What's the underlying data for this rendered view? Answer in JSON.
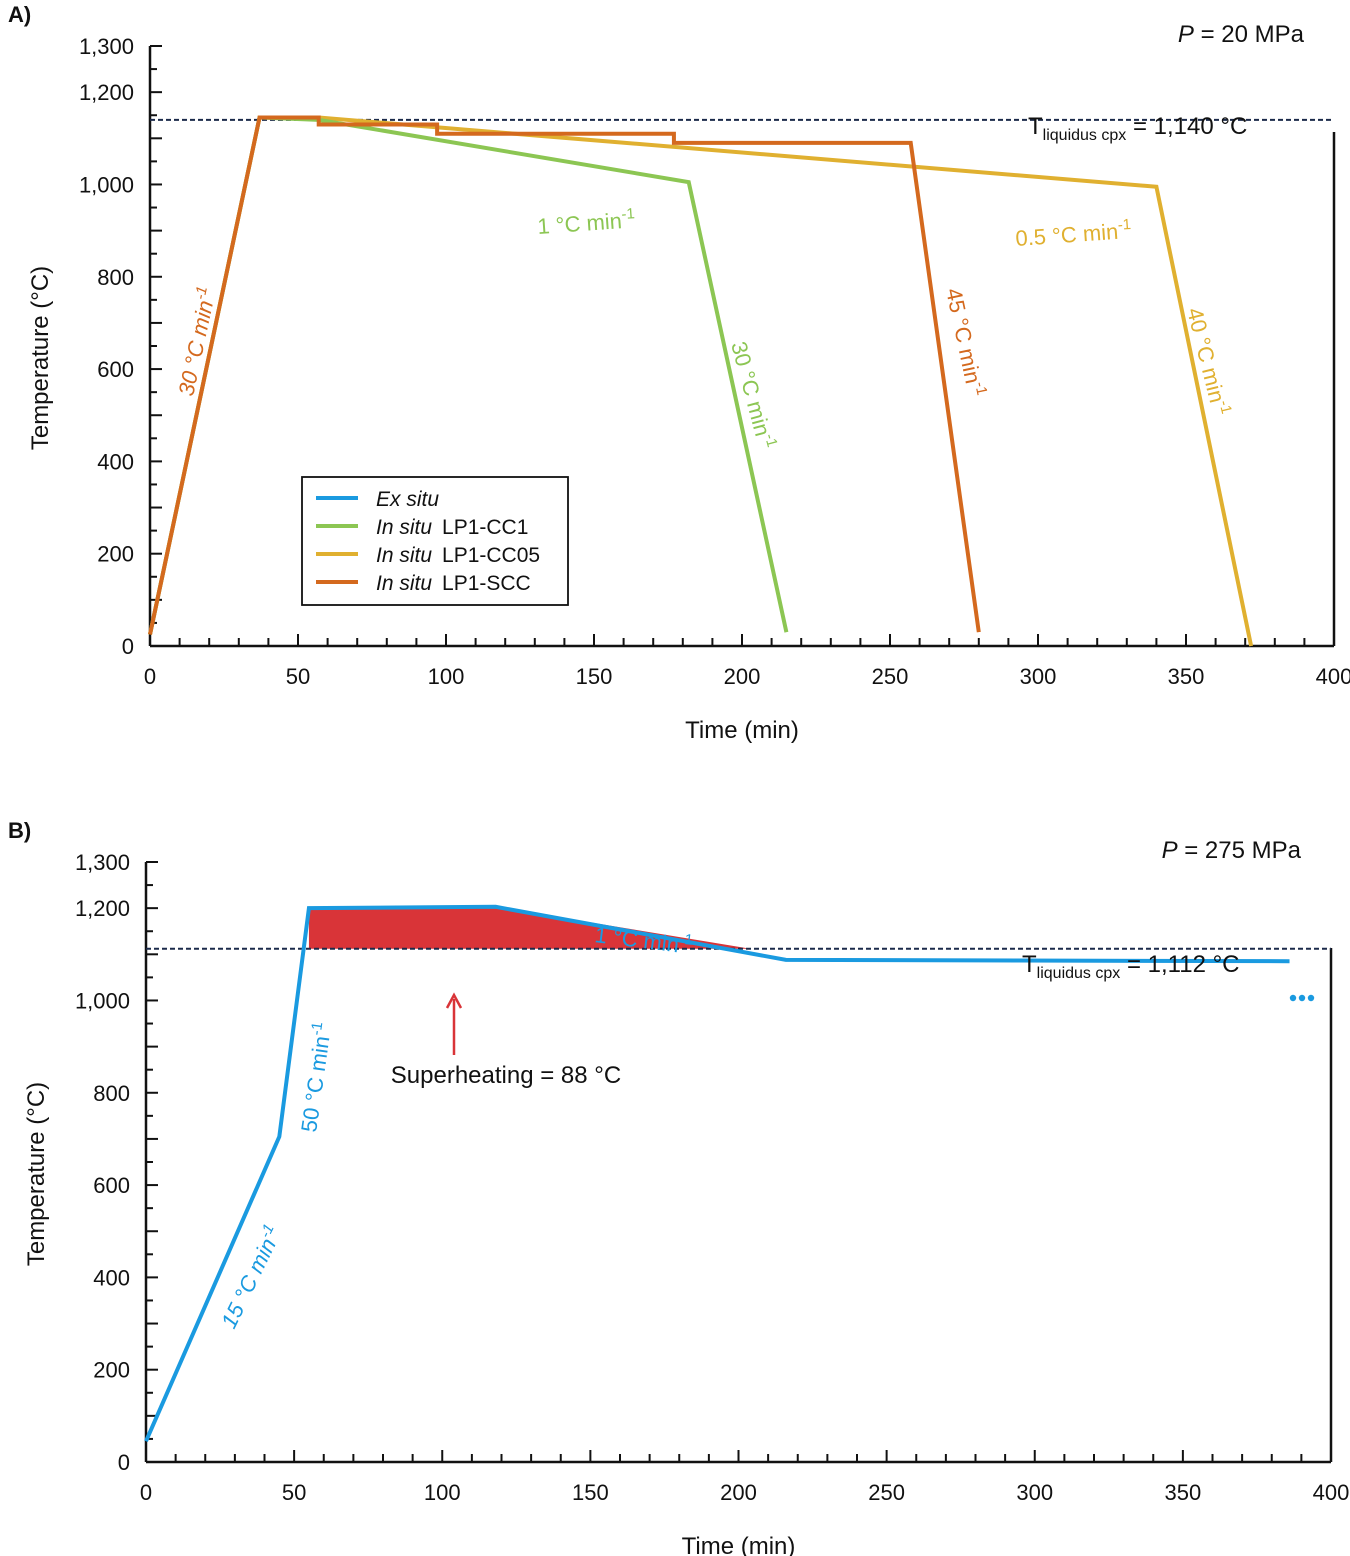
{
  "figure": {
    "panels": [
      {
        "label": "A)",
        "pressure": {
          "symbol": "P",
          "rest": " = 20 MPa"
        },
        "liquidus": {
          "main": "T",
          "sub": "liquidus cpx",
          "rest": " = 1,140 °C"
        },
        "legend": [
          {
            "italic": "Ex situ",
            "rest": "",
            "color": "#1a9ae0"
          },
          {
            "italic": "In situ",
            "rest": "LP1-CC1",
            "color": "#8cc653"
          },
          {
            "italic": "In situ",
            "rest": "LP1-CC05",
            "color": "#e0b030"
          },
          {
            "italic": "In situ",
            "rest": "LP1-SCC",
            "color": "#d4691e"
          }
        ],
        "rate_labels": [
          {
            "pre": "30 °C min",
            "sup": "-1",
            "italic": true,
            "color": "#d4691e"
          },
          {
            "pre": "1 °C min",
            "sup": "-1",
            "italic": false,
            "color": "#8cc653"
          },
          {
            "pre": "30 °C min",
            "sup": "-1",
            "italic": false,
            "color": "#8cc653"
          },
          {
            "pre": "45 °C min",
            "sup": "-1",
            "italic": false,
            "color": "#d4691e"
          },
          {
            "pre": "0.5 °C min",
            "sup": "-1",
            "italic": false,
            "color": "#e0b030"
          },
          {
            "pre": "40 °C min",
            "sup": "-1",
            "italic": false,
            "color": "#e0b030"
          }
        ]
      },
      {
        "label": "B)",
        "pressure": {
          "symbol": "P",
          "rest": " = 275 MPa"
        },
        "liquidus": {
          "main": "T",
          "sub": "liquidus cpx",
          "rest": " = 1,112 °C"
        },
        "superheating": "Superheating = 88 °C",
        "rate_labels": [
          {
            "pre": "15 °C min",
            "sup": "-1",
            "italic": true,
            "color": "#1a9ae0"
          },
          {
            "pre": "50 °C min",
            "sup": "-1",
            "italic": false,
            "color": "#1a9ae0"
          },
          {
            "pre": "1 °C min",
            "sup": "-1",
            "italic": false,
            "color": "#1a9ae0"
          }
        ]
      }
    ]
  },
  "chart_data": [
    {
      "type": "line",
      "xlabel": "Time (min)",
      "ylabel": "Temperature (°C)",
      "xlim": [
        0,
        400
      ],
      "ylim": [
        0,
        1300
      ],
      "xticks": [
        "0",
        "50",
        "100",
        "150",
        "200",
        "250",
        "300",
        "350",
        "400"
      ],
      "yticks": [
        "0",
        "200",
        "400",
        "600",
        "800",
        "1,000",
        "1,200",
        "1,300"
      ],
      "ytick_values": [
        0,
        200,
        400,
        600,
        800,
        1000,
        1200,
        1300
      ],
      "liquidus_temperature": 1140,
      "series": [
        {
          "name": "In situ LP1-CC05",
          "color": "#e0b030",
          "x": [
            0,
            37,
            57,
            340,
            372
          ],
          "y": [
            25,
            1145,
            1145,
            995,
            0
          ]
        },
        {
          "name": "In situ LP1-CC1",
          "color": "#8cc653",
          "x": [
            0,
            37,
            57,
            182,
            215
          ],
          "y": [
            25,
            1145,
            1140,
            1005,
            30
          ]
        },
        {
          "name": "In situ LP1-SCC",
          "color": "#d4691e",
          "x": [
            0,
            37,
            57,
            57,
            97,
            97,
            177,
            177,
            257,
            280
          ],
          "y": [
            25,
            1145,
            1145,
            1130,
            1130,
            1110,
            1110,
            1090,
            1090,
            30
          ]
        }
      ]
    },
    {
      "type": "line",
      "xlabel": "Time (min)",
      "ylabel": "Temperature (°C)",
      "xlim": [
        0,
        400
      ],
      "ylim": [
        0,
        1300
      ],
      "xticks": [
        "0",
        "50",
        "100",
        "150",
        "200",
        "250",
        "300",
        "350",
        "400"
      ],
      "yticks": [
        "0",
        "200",
        "400",
        "600",
        "800",
        "1,000",
        "1,200",
        "1,300"
      ],
      "ytick_values": [
        0,
        200,
        400,
        600,
        800,
        1000,
        1200,
        1300
      ],
      "liquidus_temperature": 1112,
      "superheating": 88,
      "series": [
        {
          "name": "Ex situ",
          "color": "#1a9ae0",
          "x": [
            0,
            45,
            55,
            118,
            216,
            386
          ],
          "y": [
            45,
            705,
            1200,
            1203,
            1088,
            1085
          ]
        }
      ],
      "shaded_region": {
        "color": "#d93438",
        "x": [
          55,
          118,
          204
        ],
        "y_top": [
          1200,
          1203,
          1112
        ],
        "y_bottom": 1112
      }
    }
  ]
}
